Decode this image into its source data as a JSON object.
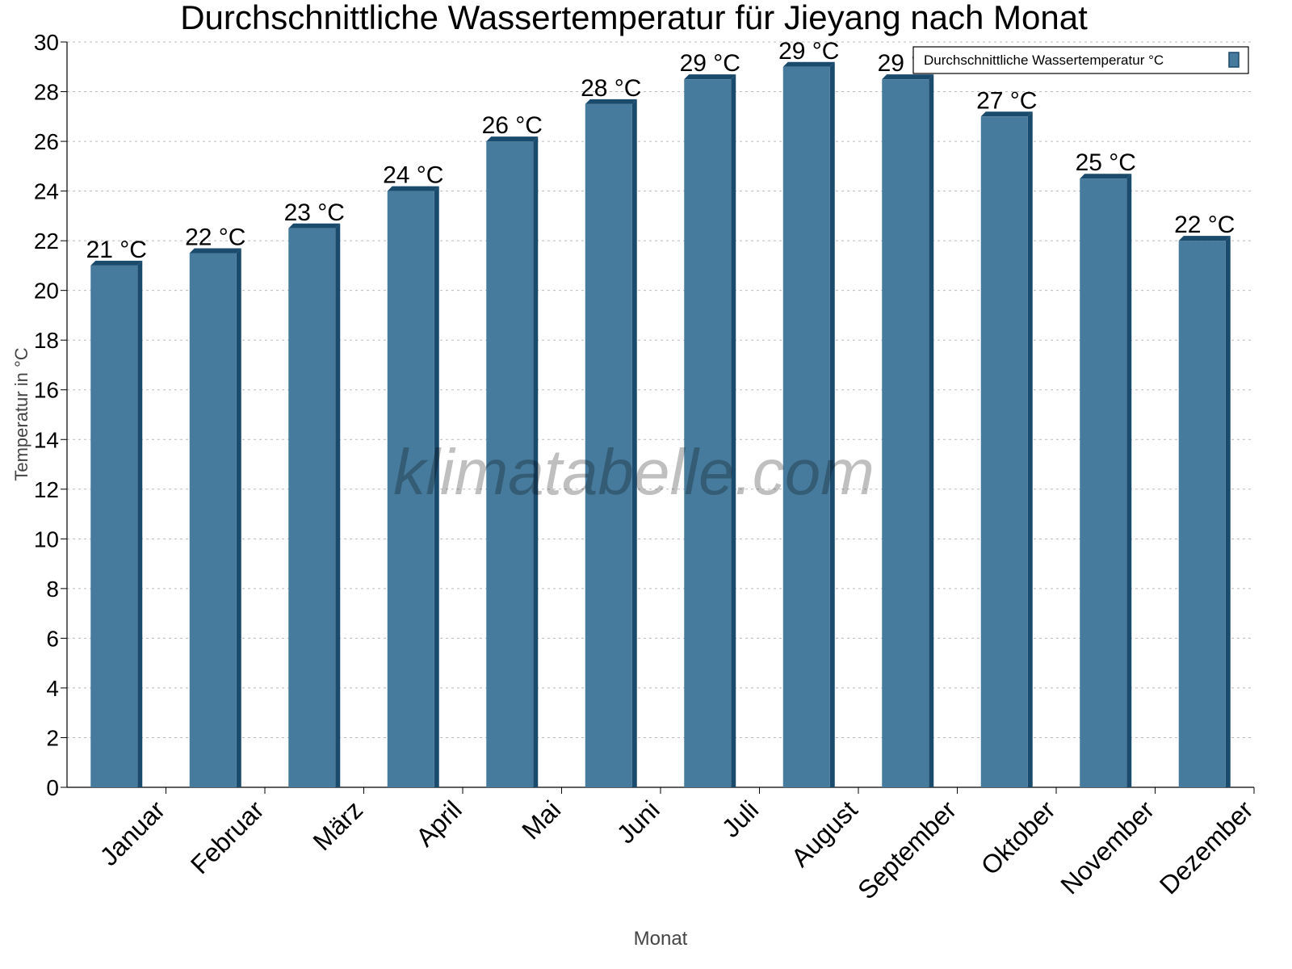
{
  "chart_data": {
    "type": "bar",
    "title": "Durchschnittliche Wassertemperatur für Jieyang nach Monat",
    "xlabel": "Monat",
    "ylabel": "Temperatur in °C",
    "ylim": [
      0,
      30
    ],
    "yticks": [
      0,
      2,
      4,
      6,
      8,
      10,
      12,
      14,
      16,
      18,
      20,
      22,
      24,
      26,
      28,
      30
    ],
    "grid": true,
    "legend_position": "top-right",
    "categories": [
      "Januar",
      "Februar",
      "März",
      "April",
      "Mai",
      "Juni",
      "Juli",
      "August",
      "September",
      "Oktober",
      "November",
      "Dezember"
    ],
    "series": [
      {
        "name": "Durchschnittliche Wassertemperatur °C",
        "values": [
          21.0,
          21.5,
          22.5,
          24.0,
          26.0,
          27.5,
          28.5,
          29.0,
          28.5,
          27.0,
          24.5,
          22.0
        ],
        "data_labels": [
          "21 °C",
          "22 °C",
          "23 °C",
          "24 °C",
          "26 °C",
          "28 °C",
          "29 °C",
          "29 °C",
          "29 °C",
          "27 °C",
          "25 °C",
          "22 °C"
        ],
        "color": "#467b9d",
        "edge_color": "#1a4a6c"
      }
    ],
    "watermark": "klimatabelle.com"
  }
}
